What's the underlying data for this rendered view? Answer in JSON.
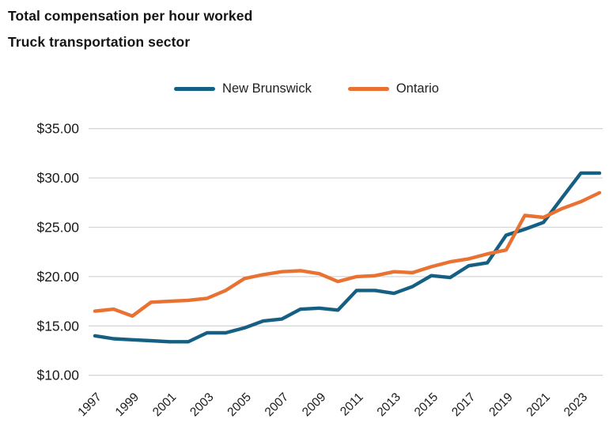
{
  "header": {
    "title_line1": "Total compensation per hour worked",
    "title_line2": "Truck transportation sector"
  },
  "legend": {
    "items": [
      {
        "label": "New Brunswick",
        "color_key": "new_brunswick"
      },
      {
        "label": "Ontario",
        "color_key": "ontario"
      }
    ]
  },
  "colors": {
    "new_brunswick": "#156082",
    "ontario": "#E97132",
    "gridline": "#D6D6D6",
    "axis_text": "#1a1a1a"
  },
  "chart_data": {
    "type": "line",
    "title": "Total compensation per hour worked",
    "subtitle": "Truck transportation sector",
    "unit": "$ per hour",
    "grid": "horizontal",
    "legend_position": "top",
    "ylim": [
      10,
      35
    ],
    "x": [
      1997,
      1998,
      1999,
      2000,
      2001,
      2002,
      2003,
      2004,
      2005,
      2006,
      2007,
      2008,
      2009,
      2010,
      2011,
      2012,
      2013,
      2014,
      2015,
      2016,
      2017,
      2018,
      2019,
      2020,
      2021,
      2022,
      2023,
      2024
    ],
    "series": [
      {
        "name": "New Brunswick",
        "color_key": "new_brunswick",
        "values": [
          14.0,
          13.7,
          13.6,
          13.5,
          13.4,
          13.4,
          14.3,
          14.3,
          14.8,
          15.5,
          15.7,
          16.7,
          16.8,
          16.6,
          18.6,
          18.6,
          18.3,
          19.0,
          20.1,
          19.9,
          21.1,
          21.4,
          24.2,
          24.8,
          25.5,
          28.0,
          30.5,
          30.5
        ]
      },
      {
        "name": "Ontario",
        "color_key": "ontario",
        "values": [
          16.5,
          16.7,
          16.0,
          17.4,
          17.5,
          17.6,
          17.8,
          18.6,
          19.8,
          20.2,
          20.5,
          20.6,
          20.3,
          19.5,
          20.0,
          20.1,
          20.5,
          20.4,
          21.0,
          21.5,
          21.8,
          22.3,
          22.7,
          26.2,
          26.0,
          26.9,
          27.6,
          28.5
        ]
      }
    ],
    "y_axis": {
      "tick_values": [
        35,
        30,
        25,
        20,
        15,
        10
      ],
      "tick_labels": [
        "$35.00",
        "$30.00",
        "$25.00",
        "$20.00",
        "$15.00",
        "$10.00"
      ]
    },
    "x_axis": {
      "tick_years": [
        1997,
        1999,
        2001,
        2003,
        2005,
        2007,
        2009,
        2011,
        2013,
        2015,
        2017,
        2019,
        2021,
        2023
      ],
      "label_rotation_deg": -45
    }
  }
}
